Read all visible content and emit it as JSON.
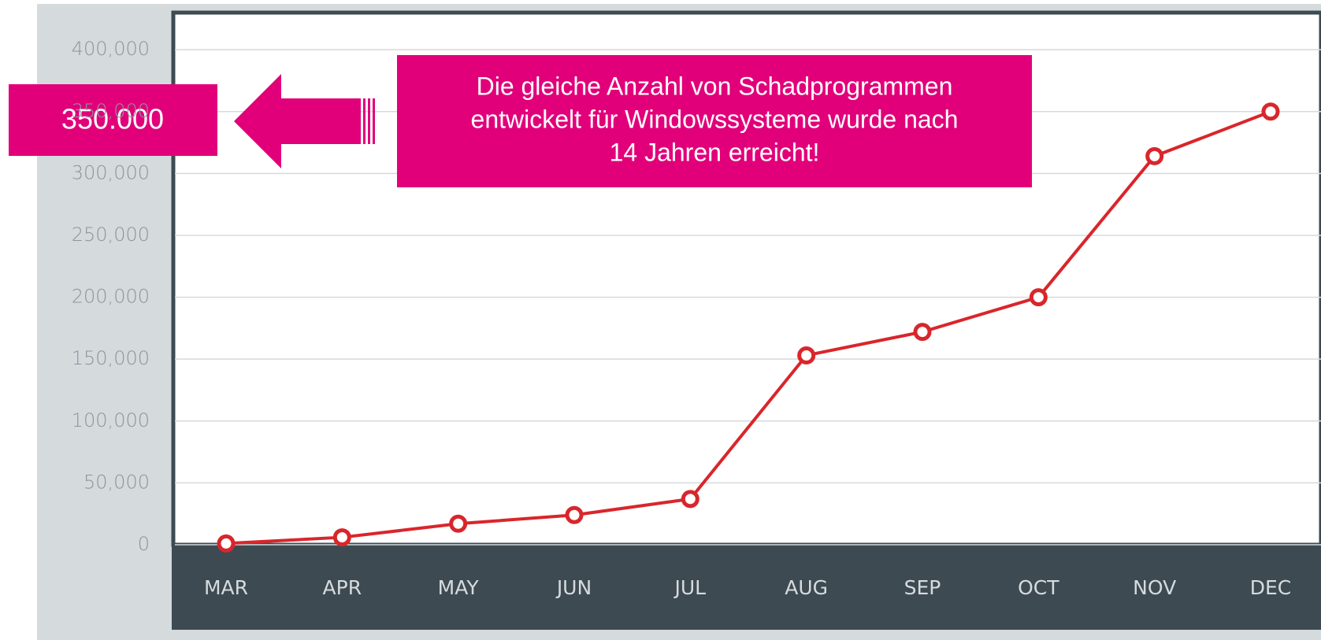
{
  "chart_data": {
    "type": "line",
    "categories": [
      "MAR",
      "APR",
      "MAY",
      "JUN",
      "JUL",
      "AUG",
      "SEP",
      "OCT",
      "NOV",
      "DEC"
    ],
    "series": [
      {
        "name": null,
        "color": "#d9262b",
        "values": [
          1000,
          6000,
          17000,
          24000,
          37000,
          153000,
          172000,
          200000,
          314000,
          350000
        ]
      }
    ],
    "ylim": [
      0,
      430000
    ],
    "yticks": [
      0,
      {
        "value": 50000,
        "label": "50,000"
      },
      {
        "value": 100000,
        "label": "100,000"
      },
      {
        "value": 150000,
        "label": "150,000"
      },
      {
        "value": 200000,
        "label": "200,000"
      },
      {
        "value": 250000,
        "label": "250,000"
      },
      {
        "value": 300000,
        "label": "300,000"
      },
      {
        "value": 350000,
        "label": "350,000"
      },
      {
        "value": 400000,
        "label": "400,000"
      }
    ],
    "grid": true,
    "highlight_label": "350.000",
    "callout": [
      "Die gleiche Anzahl von Schadprogrammen",
      "entwickelt für Windowssysteme wurde nach",
      "14 Jahren erreicht!"
    ]
  }
}
